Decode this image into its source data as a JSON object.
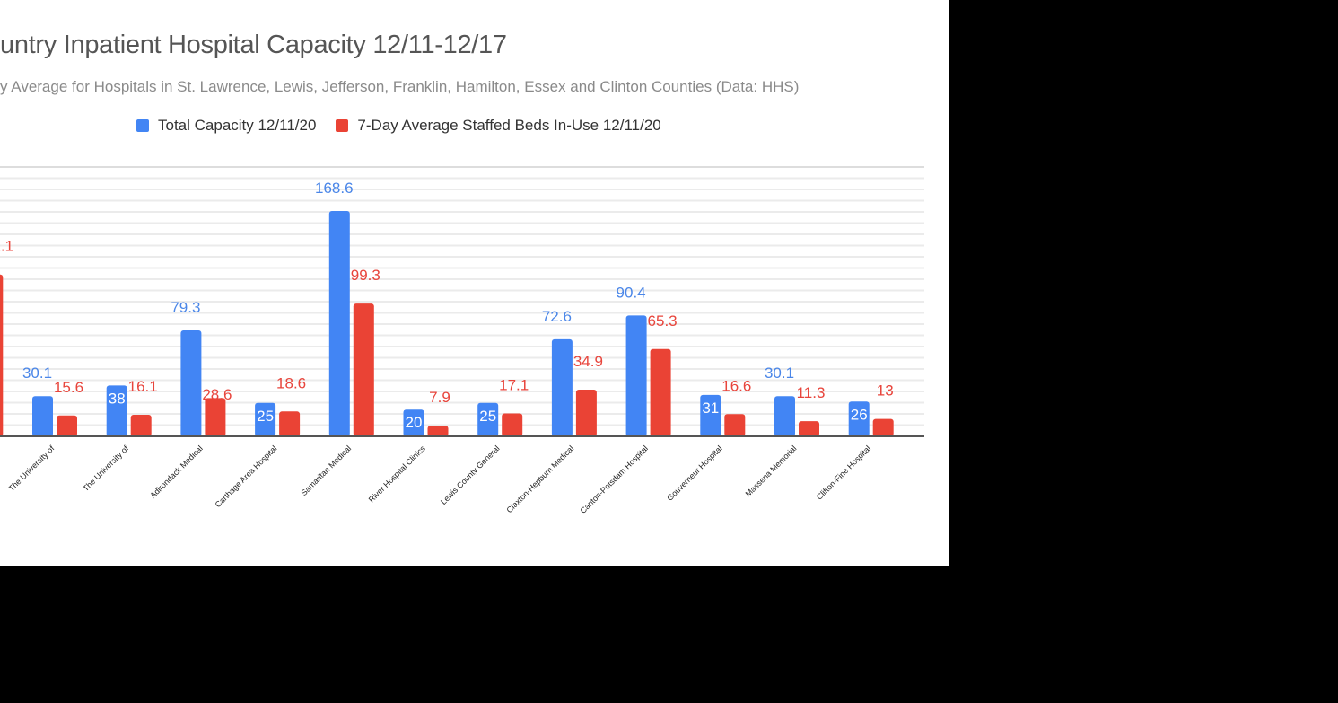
{
  "chart_data": {
    "type": "bar",
    "title": "untry Inpatient Hospital Capacity 12/11-12/17",
    "subtitle": "y Average for Hospitals in St. Lawrence, Lewis, Jefferson, Franklin, Hamilton, Essex and Clinton Counties (Data: HHS)",
    "legend_position": "top",
    "grid": true,
    "ylim": [
      0,
      200
    ],
    "categories": [
      "",
      "The University of",
      "The University of",
      "Adirondack Medical",
      "Carthage Area Hospital",
      "Samaritan Medical",
      "River Hospital Clinics",
      "Lewis County General",
      "Claxton-Hepburn Medical",
      "Canton-Potsdam Hospital",
      "Gouverneur Hospital",
      "Massena Memorial",
      "Clifton-Fine Hospital"
    ],
    "series": [
      {
        "name": "Total Capacity 12/11/20",
        "color": "#4285f4",
        "values": [
          null,
          30.1,
          38,
          79.3,
          25,
          168.6,
          20,
          25,
          72.6,
          90.4,
          31,
          30.1,
          26
        ]
      },
      {
        "name": "7-Day Average Staffed Beds In-Use 12/11/20",
        "color": "#ea4335",
        "values": [
          121.1,
          15.6,
          16.1,
          28.6,
          18.6,
          99.3,
          7.9,
          17.1,
          34.9,
          65.3,
          16.6,
          11.3,
          13
        ]
      }
    ]
  }
}
